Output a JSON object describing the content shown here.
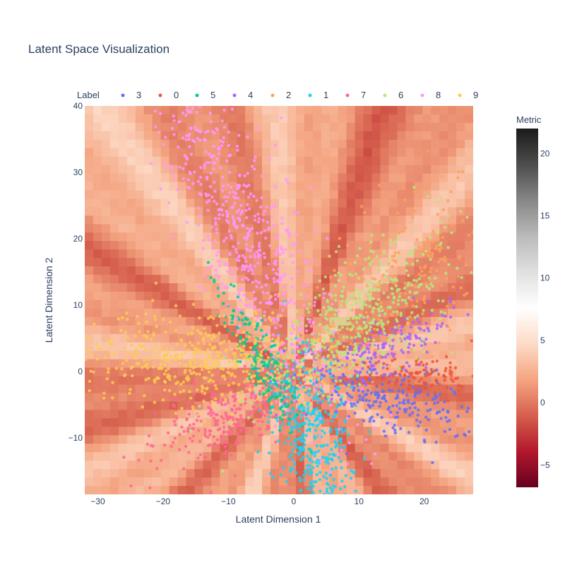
{
  "chart_data": {
    "type": "scatter",
    "title": "Latent Space Visualization",
    "xlabel": "Latent Dimension 1",
    "ylabel": "Latent Dimension 2",
    "xlim": [
      -32,
      27.5
    ],
    "ylim": [
      -18.5,
      40
    ],
    "x_ticks": [
      "−30",
      "−20",
      "−10",
      "0",
      "10",
      "20"
    ],
    "y_ticks": [
      "−10",
      "0",
      "10",
      "20",
      "30",
      "40"
    ],
    "x_tick_values": [
      -30,
      -20,
      -10,
      0,
      10,
      20
    ],
    "y_tick_values": [
      -10,
      0,
      10,
      20,
      30,
      40
    ],
    "grid": false,
    "legend": {
      "title": "Label",
      "placement": "top",
      "entries": [
        "3",
        "0",
        "5",
        "4",
        "2",
        "1",
        "7",
        "6",
        "8",
        "9"
      ]
    },
    "colorbar": {
      "title": "Metric",
      "range": [
        -6.8,
        22
      ],
      "ticks": [
        "−5",
        "0",
        "5",
        "10",
        "15",
        "20"
      ],
      "tick_values": [
        -5,
        0,
        5,
        10,
        15,
        20
      ],
      "colorscale": [
        "#67001f",
        "#b2182b",
        "#d6604d",
        "#f4a582",
        "#fddbc7",
        "#ffffff",
        "#e0e0e0",
        "#bababa",
        "#878787",
        "#4d4d4d",
        "#1a1a1a"
      ]
    },
    "background_heatmap": {
      "description_free": true,
      "base_value": 1.5
    },
    "series": [
      {
        "name": "3",
        "color": "#636efa",
        "center": [
          14,
          -4
        ],
        "angle_deg": -15,
        "spread": [
          7,
          2.5
        ],
        "count": 260
      },
      {
        "name": "0",
        "color": "#EF553B",
        "center": [
          19,
          -0.5
        ],
        "angle_deg": 0,
        "spread": [
          5,
          1.5
        ],
        "count": 120
      },
      {
        "name": "5",
        "color": "#00cc96",
        "center": [
          -4,
          0
        ],
        "angle_deg": -60,
        "spread": [
          6,
          1.5
        ],
        "count": 260
      },
      {
        "name": "4",
        "color": "#ab63fa",
        "center": [
          14,
          4
        ],
        "angle_deg": 20,
        "spread": [
          6,
          2
        ],
        "count": 180
      },
      {
        "name": "2",
        "color": "#FFA15A",
        "center": [
          17,
          14
        ],
        "angle_deg": 40,
        "spread": [
          10,
          5
        ],
        "count": 260
      },
      {
        "name": "1",
        "color": "#19d3f3",
        "center": [
          3,
          -10
        ],
        "angle_deg": -80,
        "spread": [
          7,
          3
        ],
        "count": 420
      },
      {
        "name": "7",
        "color": "#FF6692",
        "center": [
          -9,
          -6
        ],
        "angle_deg": 210,
        "spread": [
          7,
          3
        ],
        "count": 320
      },
      {
        "name": "6",
        "color": "#B6E880",
        "center": [
          10,
          8
        ],
        "angle_deg": 35,
        "spread": [
          10,
          4
        ],
        "count": 500
      },
      {
        "name": "8",
        "color": "#FF97FF",
        "center": [
          -7,
          20
        ],
        "angle_deg": 115,
        "spread": [
          14,
          3.5
        ],
        "count": 600
      },
      {
        "name": "9",
        "color": "#FECB52",
        "center": [
          -15,
          2
        ],
        "angle_deg": 180,
        "spread": [
          9,
          3.5
        ],
        "count": 480
      }
    ]
  }
}
